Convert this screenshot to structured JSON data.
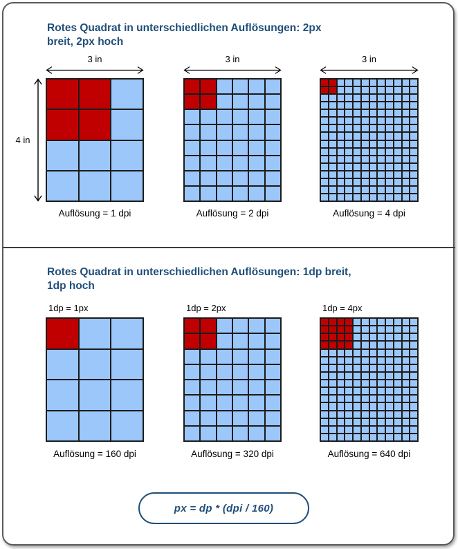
{
  "colors": {
    "red": "#C00000",
    "blue": "#9CC7FB",
    "grid_line": "#1B1B1B",
    "heading_blue": "#1F4E79",
    "frame_border": "#595959"
  },
  "section1": {
    "title_line1": "Rotes Quadrat in unterschiedlichen Auflösungen: 2px",
    "title_line2": "breit, 2px hoch",
    "height_label": "4 in",
    "figures": [
      {
        "width_label": "3 in",
        "cols": 3,
        "rows": 4,
        "red_cols": 2,
        "red_rows": 2,
        "caption": "Auflösung = 1 dpi"
      },
      {
        "width_label": "3 in",
        "cols": 6,
        "rows": 8,
        "red_cols": 2,
        "red_rows": 2,
        "caption": "Auflösung = 2 dpi"
      },
      {
        "width_label": "3 in",
        "cols": 12,
        "rows": 16,
        "red_cols": 2,
        "red_rows": 2,
        "caption": "Auflösung = 4 dpi"
      }
    ]
  },
  "section2": {
    "title_line1": "Rotes Quadrat in unterschiedlichen Auflösungen: 1dp breit,",
    "title_line2": "1dp hoch",
    "figures": [
      {
        "top_label": "1dp = 1px",
        "cols": 3,
        "rows": 4,
        "red_cols": 1,
        "red_rows": 1,
        "caption": "Auflösung = 160 dpi"
      },
      {
        "top_label": "1dp = 2px",
        "cols": 6,
        "rows": 8,
        "red_cols": 2,
        "red_rows": 2,
        "caption": "Auflösung = 320 dpi"
      },
      {
        "top_label": "1dp = 4px",
        "cols": 12,
        "rows": 16,
        "red_cols": 4,
        "red_rows": 4,
        "caption": "Auflösung = 640 dpi"
      }
    ]
  },
  "formula": "px = dp * (dpi / 160)"
}
